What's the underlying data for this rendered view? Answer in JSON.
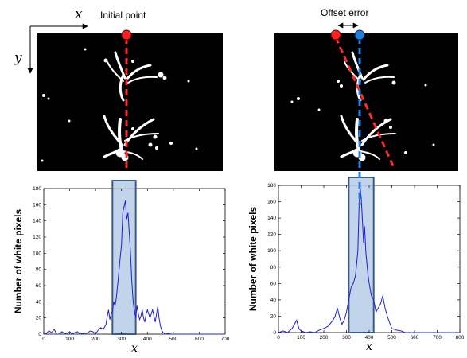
{
  "annotations": {
    "x_axis_var": "x",
    "y_axis_var": "y",
    "initial_point": "Initial point",
    "offset_error": "Offset error"
  },
  "colors": {
    "red_point": "#ff2020",
    "blue_point": "#1f7fd6",
    "dash_red": "#ff2a2a",
    "dash_blue": "#2a7fe0",
    "histogram_line": "#1f1fd8",
    "highlight_fill": "#b7cde6",
    "highlight_border": "#3a5c86"
  },
  "chart_data": [
    {
      "type": "line",
      "xlabel": "x",
      "ylabel": "Number of white pixels",
      "xlim": [
        0,
        700
      ],
      "ylim": [
        0,
        180
      ],
      "xticks": [
        0,
        100,
        200,
        300,
        400,
        500,
        600,
        700
      ],
      "yticks": [
        0,
        20,
        40,
        60,
        80,
        100,
        120,
        140,
        160,
        180
      ],
      "highlight_range": [
        265,
        355
      ],
      "x": [
        0,
        10,
        20,
        30,
        40,
        50,
        60,
        70,
        80,
        90,
        100,
        110,
        120,
        130,
        140,
        150,
        160,
        170,
        180,
        190,
        200,
        210,
        220,
        230,
        240,
        245,
        250,
        255,
        260,
        265,
        270,
        275,
        280,
        285,
        290,
        295,
        300,
        305,
        310,
        315,
        320,
        325,
        330,
        335,
        340,
        345,
        350,
        355,
        360,
        365,
        370,
        375,
        380,
        385,
        390,
        395,
        400,
        410,
        420,
        430,
        440,
        445,
        450,
        455,
        460,
        470,
        480,
        490,
        500,
        520,
        540,
        560,
        580,
        600,
        620,
        640,
        660,
        680,
        700
      ],
      "y": [
        0,
        1,
        4,
        2,
        6,
        0,
        0,
        3,
        1,
        0,
        3,
        0,
        2,
        3,
        0,
        1,
        0,
        2,
        4,
        3,
        0,
        5,
        8,
        6,
        12,
        22,
        30,
        18,
        25,
        28,
        40,
        35,
        45,
        60,
        78,
        95,
        110,
        150,
        158,
        165,
        142,
        150,
        125,
        100,
        65,
        40,
        28,
        20,
        35,
        25,
        18,
        22,
        30,
        20,
        15,
        25,
        30,
        20,
        30,
        15,
        34,
        20,
        10,
        5,
        2,
        0,
        1,
        0,
        0,
        0,
        0,
        0,
        0,
        0,
        0,
        0,
        0,
        0,
        0
      ]
    },
    {
      "type": "line",
      "xlabel": "x",
      "ylabel": "Number of white pixels",
      "xlim": [
        0,
        800
      ],
      "ylim": [
        0,
        180
      ],
      "xticks": [
        0,
        100,
        200,
        300,
        400,
        500,
        600,
        700,
        800
      ],
      "yticks": [
        0,
        20,
        40,
        60,
        80,
        100,
        120,
        140,
        160,
        180
      ],
      "highlight_range": [
        310,
        420
      ],
      "x": [
        0,
        20,
        40,
        60,
        70,
        80,
        90,
        100,
        120,
        140,
        160,
        180,
        200,
        220,
        240,
        250,
        260,
        270,
        280,
        290,
        300,
        310,
        320,
        330,
        340,
        350,
        355,
        360,
        365,
        370,
        375,
        380,
        385,
        390,
        395,
        400,
        410,
        420,
        430,
        440,
        450,
        460,
        470,
        480,
        490,
        500,
        520,
        540,
        560,
        600,
        650,
        700,
        750,
        800
      ],
      "y": [
        0,
        2,
        0,
        5,
        10,
        15,
        5,
        2,
        0,
        1,
        0,
        3,
        5,
        8,
        15,
        20,
        30,
        18,
        10,
        15,
        25,
        40,
        55,
        60,
        70,
        100,
        150,
        178,
        165,
        140,
        110,
        130,
        100,
        85,
        70,
        60,
        45,
        40,
        25,
        30,
        35,
        45,
        30,
        20,
        12,
        5,
        3,
        2,
        0,
        0,
        0,
        0,
        0,
        0
      ]
    }
  ]
}
